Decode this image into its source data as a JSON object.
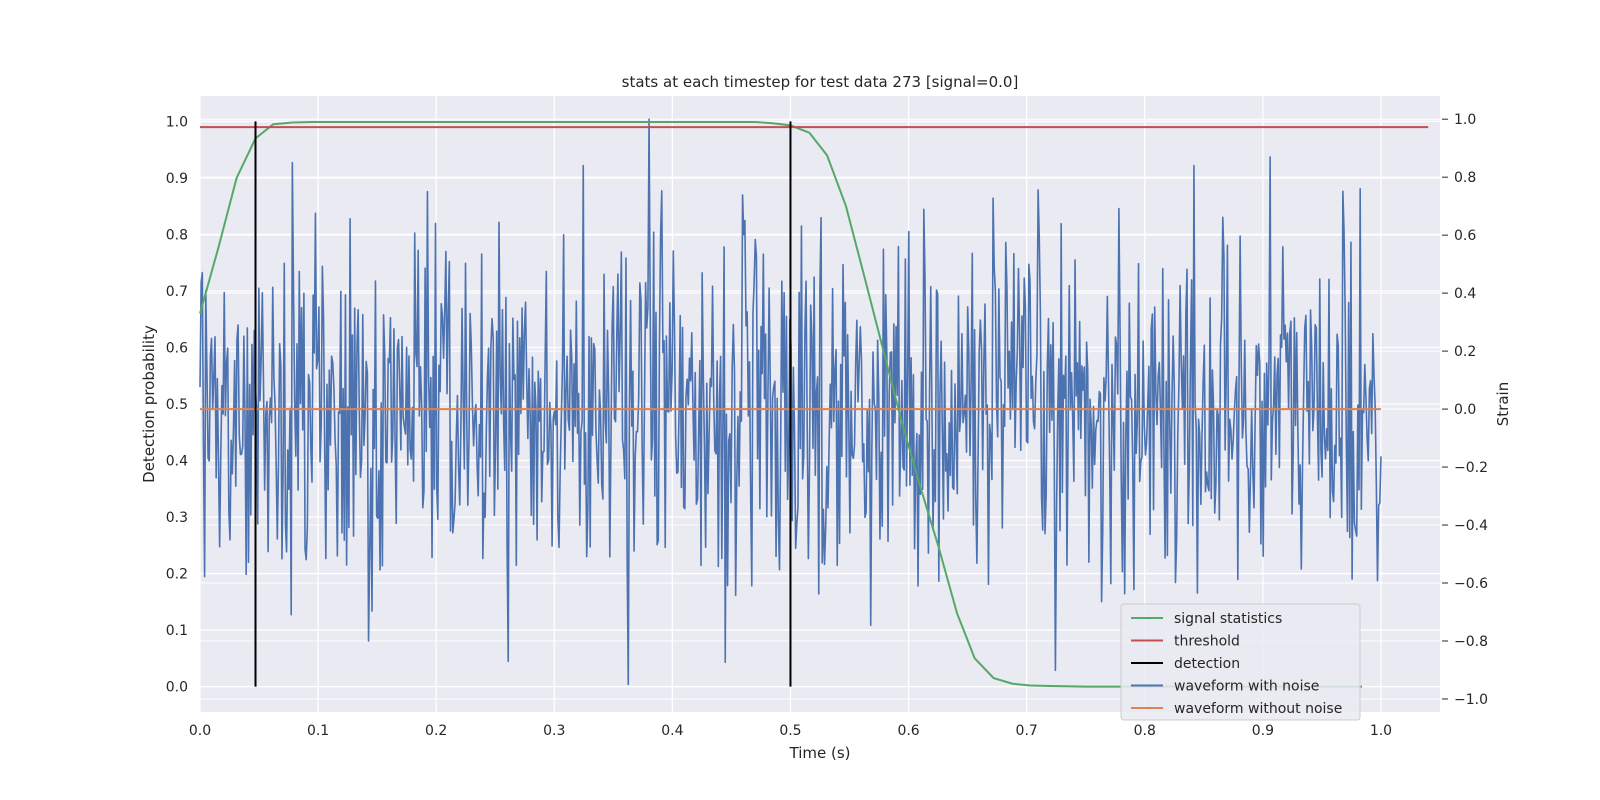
{
  "chart_data": {
    "type": "line",
    "title": "stats at each timestep for test data 273 [signal=0.0]",
    "xlabel": "Time (s)",
    "ylabel_left": "Detection probability",
    "ylabel_right": "Strain",
    "xlim": [
      0.0,
      1.05
    ],
    "ylim_left": [
      -0.045,
      1.045
    ],
    "ylim_right": [
      -1.045,
      1.08
    ],
    "xticks": [
      "0.0",
      "0.1",
      "0.2",
      "0.3",
      "0.4",
      "0.5",
      "0.6",
      "0.7",
      "0.8",
      "0.9",
      "1.0"
    ],
    "yticks_left": [
      "0.0",
      "0.1",
      "0.2",
      "0.3",
      "0.4",
      "0.5",
      "0.6",
      "0.7",
      "0.8",
      "0.9",
      "1.0"
    ],
    "yticks_right": [
      "−1.0",
      "−0.8",
      "−0.6",
      "−0.4",
      "−0.2",
      "0.0",
      "0.2",
      "0.4",
      "0.6",
      "0.8",
      "1.0"
    ],
    "grid": true,
    "legend_position": "lower-right",
    "colors": {
      "signal_statistics": "#55a868",
      "threshold": "#c44e52",
      "detection": "#000000",
      "waveform_with_noise": "#4c72b0",
      "waveform_without_noise": "#dd8452",
      "plot_background": "#eaeaf2",
      "grid": "#ffffff"
    },
    "series": [
      {
        "name": "signal statistics",
        "axis": "left",
        "x": [
          0.0,
          0.016,
          0.031,
          0.047,
          0.062,
          0.078,
          0.094,
          0.109,
          0.2,
          0.3,
          0.4,
          0.47,
          0.484,
          0.5,
          0.516,
          0.531,
          0.547,
          0.562,
          0.578,
          0.594,
          0.609,
          0.625,
          0.641,
          0.656,
          0.672,
          0.688,
          0.703,
          0.72,
          0.75,
          0.8,
          0.9,
          0.984
        ],
        "y": [
          0.66,
          0.78,
          0.9,
          0.97,
          0.995,
          0.998,
          0.999,
          0.999,
          0.999,
          0.999,
          0.999,
          0.999,
          0.997,
          0.993,
          0.98,
          0.94,
          0.85,
          0.73,
          0.6,
          0.47,
          0.36,
          0.25,
          0.13,
          0.05,
          0.015,
          0.005,
          0.002,
          0.001,
          0.0,
          0.0,
          0.0,
          0.0
        ]
      },
      {
        "name": "threshold",
        "axis": "left",
        "x": [
          0.0,
          1.04
        ],
        "y": [
          0.99,
          0.99
        ]
      },
      {
        "name": "detection",
        "axis": "left",
        "x_positions": [
          0.047,
          0.5
        ],
        "y_range": [
          0.0,
          1.0
        ]
      },
      {
        "name": "waveform with noise",
        "axis": "right",
        "x_range": [
          0.0,
          1.0
        ],
        "n_points": 1024,
        "mean": 0.0,
        "std": 0.3,
        "peaks": [
          {
            "x": 0.38,
            "y": 1.0
          },
          {
            "x": 0.363,
            "y": -0.95
          },
          {
            "x": 0.906,
            "y": 0.87
          },
          {
            "x": 0.078,
            "y": 0.85
          },
          {
            "x": 0.193,
            "y": 0.75
          },
          {
            "x": 0.982,
            "y": 0.76
          },
          {
            "x": 0.261,
            "y": -0.87
          },
          {
            "x": 0.143,
            "y": -0.8
          }
        ]
      },
      {
        "name": "waveform without noise",
        "axis": "right",
        "x": [
          0.0,
          1.0
        ],
        "y": [
          0.0,
          0.0
        ]
      }
    ],
    "legend": [
      {
        "label": "signal statistics",
        "color": "#55a868"
      },
      {
        "label": "threshold",
        "color": "#c44e52"
      },
      {
        "label": "detection",
        "color": "#000000"
      },
      {
        "label": "waveform with noise",
        "color": "#4c72b0"
      },
      {
        "label": "waveform without noise",
        "color": "#dd8452"
      }
    ]
  }
}
